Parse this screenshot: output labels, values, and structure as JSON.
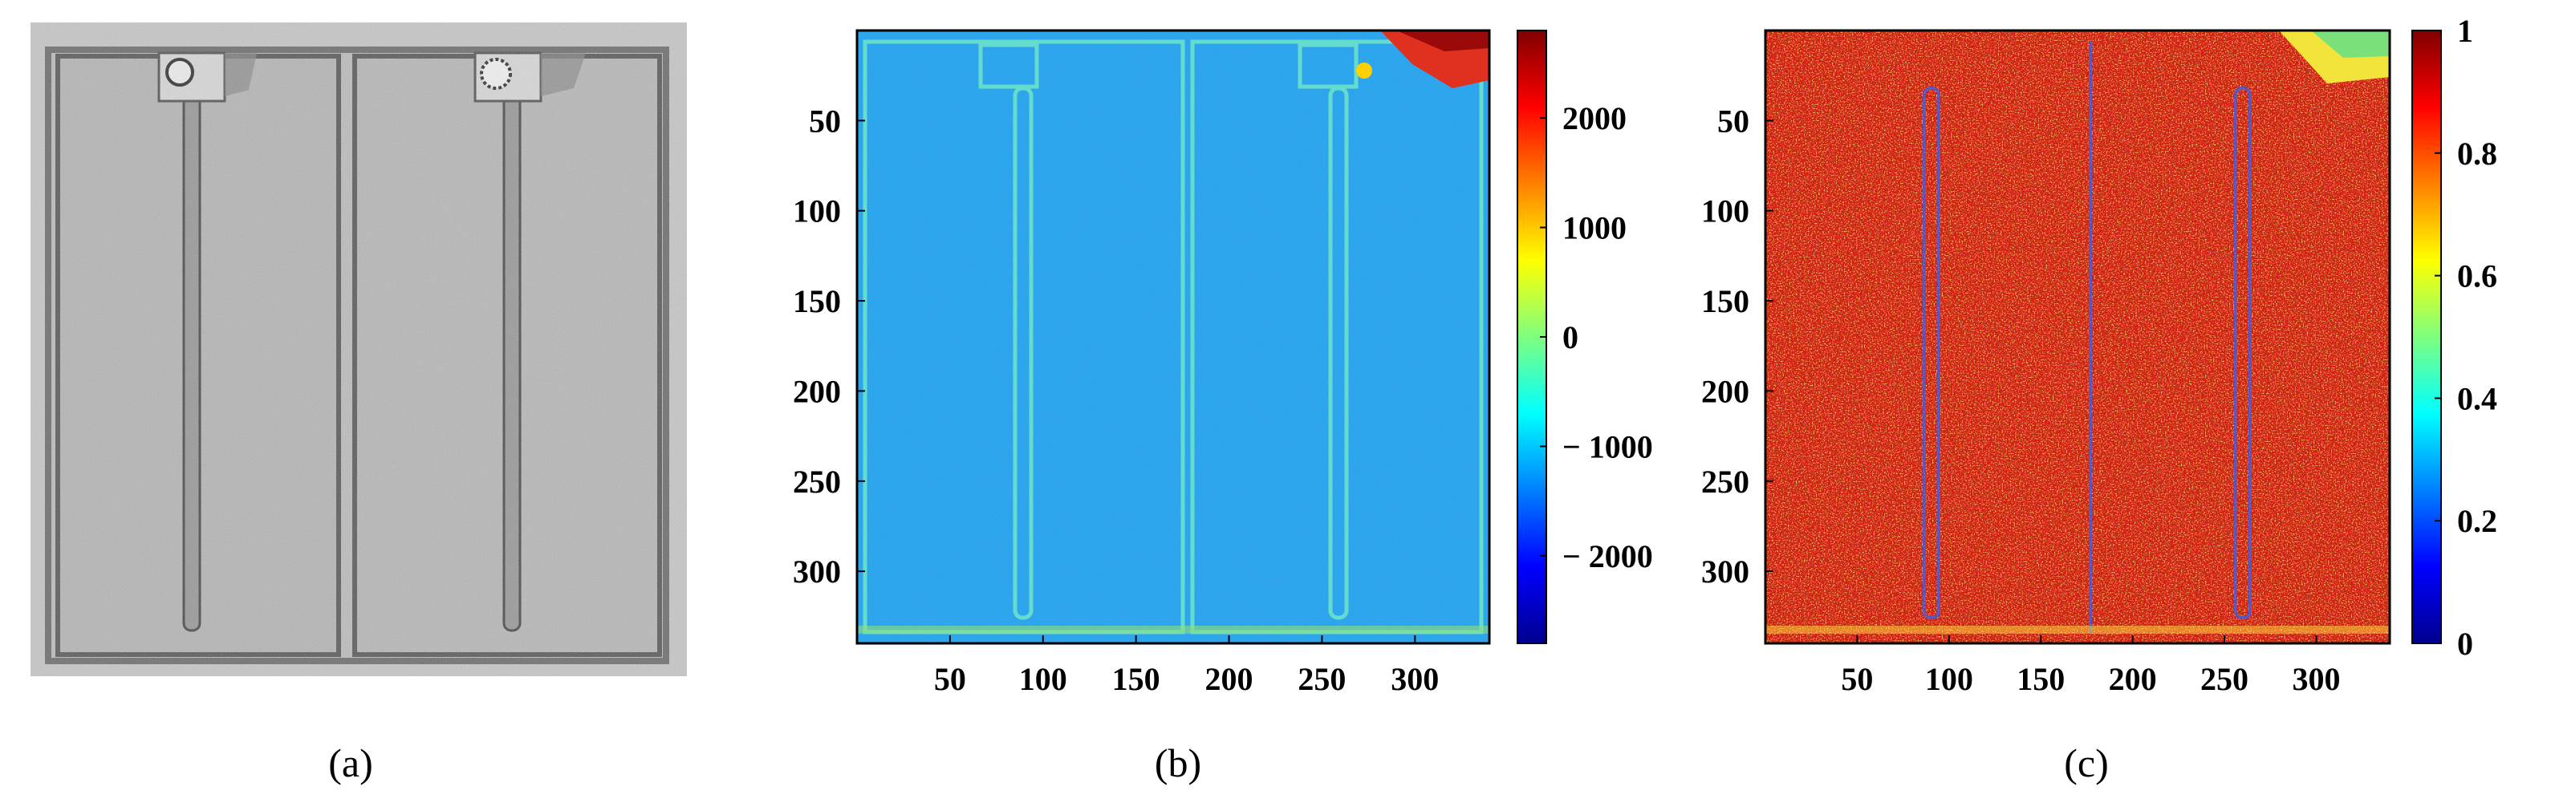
{
  "panels": {
    "a": {
      "caption": "(a)"
    },
    "b": {
      "caption": "(b)"
    },
    "c": {
      "caption": "(c)"
    }
  },
  "chart_data": [
    {
      "type": "image",
      "panel": "(a)",
      "description_visible": "grayscale photograph of a plate with two rectangular pockets, each with a narrow vertical slot and a connector at the top"
    },
    {
      "type": "heatmap",
      "panel": "(b)",
      "colormap": "jet",
      "xlim": [
        0,
        340
      ],
      "ylim": [
        340,
        0
      ],
      "xticks": [
        50,
        100,
        150,
        200,
        250,
        300
      ],
      "yticks": [
        50,
        100,
        150,
        200,
        250,
        300
      ],
      "colorbar": {
        "range": [
          -2800,
          2800
        ],
        "ticks": [
          -2000,
          -1000,
          0,
          1000,
          2000
        ],
        "tick_labels": [
          "− 2000",
          "− 1000",
          "0",
          "1000",
          "2000"
        ]
      },
      "dominant_value_approx": -1200
    },
    {
      "type": "heatmap",
      "panel": "(c)",
      "colormap": "jet",
      "xlim": [
        0,
        340
      ],
      "ylim": [
        340,
        0
      ],
      "xticks": [
        50,
        100,
        150,
        200,
        250,
        300
      ],
      "yticks": [
        50,
        100,
        150,
        200,
        250,
        300
      ],
      "colorbar": {
        "range": [
          0,
          1
        ],
        "ticks": [
          0,
          0.2,
          0.4,
          0.6,
          0.8,
          1
        ],
        "tick_labels": [
          "0",
          "0.2",
          "0.4",
          "0.6",
          "0.8",
          "1"
        ]
      },
      "dominant_value_approx": 0.95
    }
  ]
}
